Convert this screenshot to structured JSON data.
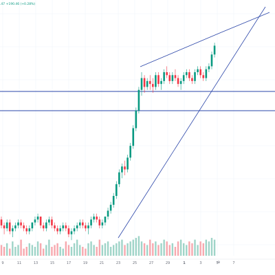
{
  "legend": {
    "text": ".47  +190.46 (+0.28%)",
    "color": "#089981"
  },
  "colors": {
    "up": "#089981",
    "down": "#f23645",
    "up_volume": "#9fd4c8",
    "down_volume": "#f7a8ae",
    "trendline": "#2a45a8",
    "grid": "#f0f3fa",
    "axis_text": "#6b6f7a"
  },
  "chart_data": {
    "type": "candlestick",
    "title": "",
    "xlabel": "",
    "ylabel": "",
    "x_ticks": [
      "9",
      "11",
      "13",
      "15",
      "17",
      "19",
      "21",
      "23",
      "25",
      "27",
      "29",
      "1",
      "3",
      "5",
      "7"
    ],
    "highlighted_tick": "1",
    "ylim": [
      0,
      100
    ],
    "grid": true,
    "last_price_marker": "⊕",
    "candles": [
      [
        36,
        37,
        33,
        34
      ],
      [
        34,
        35,
        31,
        33
      ],
      [
        33,
        36,
        32,
        35
      ],
      [
        35,
        36,
        31,
        32
      ],
      [
        32,
        34,
        30,
        33
      ],
      [
        33,
        35,
        32,
        34
      ],
      [
        34,
        36,
        33,
        35
      ],
      [
        35,
        36,
        33,
        34
      ],
      [
        34,
        35,
        32,
        33
      ],
      [
        33,
        34,
        31,
        32
      ],
      [
        32,
        34,
        31,
        33
      ],
      [
        33,
        35,
        32,
        35
      ],
      [
        35,
        37,
        34,
        36
      ],
      [
        36,
        38,
        35,
        37
      ],
      [
        37,
        37,
        33,
        34
      ],
      [
        34,
        35,
        32,
        33
      ],
      [
        33,
        36,
        32,
        35
      ],
      [
        35,
        37,
        34,
        36
      ],
      [
        36,
        37,
        33,
        34
      ],
      [
        34,
        35,
        32,
        33
      ],
      [
        33,
        34,
        31,
        32
      ],
      [
        32,
        34,
        31,
        33
      ],
      [
        33,
        35,
        32,
        34
      ],
      [
        34,
        35,
        32,
        33
      ],
      [
        33,
        34,
        30,
        31
      ],
      [
        31,
        33,
        29,
        32
      ],
      [
        32,
        34,
        31,
        33
      ],
      [
        33,
        35,
        32,
        34
      ],
      [
        34,
        36,
        33,
        35
      ],
      [
        35,
        36,
        33,
        34
      ],
      [
        34,
        35,
        32,
        33
      ],
      [
        33,
        35,
        31,
        34
      ],
      [
        34,
        37,
        33,
        36
      ],
      [
        36,
        38,
        35,
        37
      ],
      [
        37,
        38,
        35,
        36
      ],
      [
        36,
        37,
        33,
        34
      ],
      [
        34,
        36,
        33,
        35
      ],
      [
        35,
        37,
        34,
        37
      ],
      [
        37,
        40,
        36,
        39
      ],
      [
        39,
        42,
        38,
        41
      ],
      [
        41,
        45,
        40,
        44
      ],
      [
        44,
        49,
        43,
        48
      ],
      [
        48,
        53,
        47,
        52
      ],
      [
        52,
        55,
        50,
        54
      ],
      [
        54,
        56,
        51,
        53
      ],
      [
        53,
        58,
        52,
        57
      ],
      [
        57,
        62,
        56,
        61
      ],
      [
        61,
        68,
        60,
        67
      ],
      [
        67,
        74,
        66,
        73
      ],
      [
        73,
        81,
        72,
        80
      ],
      [
        80,
        86,
        78,
        84
      ],
      [
        84,
        85,
        79,
        81
      ],
      [
        81,
        84,
        80,
        83
      ],
      [
        83,
        85,
        80,
        82
      ],
      [
        82,
        84,
        79,
        81
      ],
      [
        81,
        86,
        80,
        85
      ],
      [
        85,
        86,
        81,
        82
      ],
      [
        82,
        84,
        80,
        83
      ],
      [
        83,
        87,
        82,
        86
      ],
      [
        86,
        88,
        84,
        85
      ],
      [
        85,
        86,
        82,
        83
      ],
      [
        83,
        86,
        82,
        85
      ],
      [
        85,
        87,
        83,
        84
      ],
      [
        84,
        85,
        81,
        82
      ],
      [
        82,
        84,
        80,
        83
      ],
      [
        83,
        86,
        82,
        85
      ],
      [
        85,
        87,
        84,
        86
      ],
      [
        86,
        87,
        83,
        84
      ],
      [
        84,
        85,
        82,
        83
      ],
      [
        83,
        87,
        82,
        86
      ],
      [
        86,
        88,
        85,
        87
      ],
      [
        87,
        88,
        84,
        85
      ],
      [
        85,
        86,
        83,
        84
      ],
      [
        84,
        88,
        83,
        87
      ],
      [
        87,
        89,
        86,
        88
      ],
      [
        88,
        93,
        87,
        92
      ],
      [
        92,
        96,
        91,
        95
      ]
    ],
    "volumes": [
      6,
      5,
      7,
      4,
      8,
      5,
      6,
      9,
      4,
      5,
      7,
      6,
      5,
      8,
      7,
      4,
      6,
      9,
      5,
      6,
      7,
      5,
      4,
      8,
      6,
      5,
      7,
      9,
      6,
      5,
      4,
      7,
      8,
      6,
      5,
      9,
      6,
      7,
      8,
      5,
      6,
      7,
      8,
      9,
      6,
      7,
      8,
      9,
      10,
      11,
      8,
      7,
      6,
      9,
      7,
      8,
      6,
      7,
      9,
      8,
      6,
      7,
      5,
      8,
      9,
      7,
      6,
      8,
      7,
      9,
      6,
      8,
      7,
      9,
      8,
      10,
      9
    ],
    "horizontal_levels": [
      65.2,
      57.9
    ],
    "trendlines": [
      {
        "from": [
          42,
          28.2
        ],
        "to": [
          93,
          100
        ]
      },
      {
        "from": [
          50,
          80.0
        ],
        "to": [
          92,
          94.3
        ]
      }
    ]
  }
}
